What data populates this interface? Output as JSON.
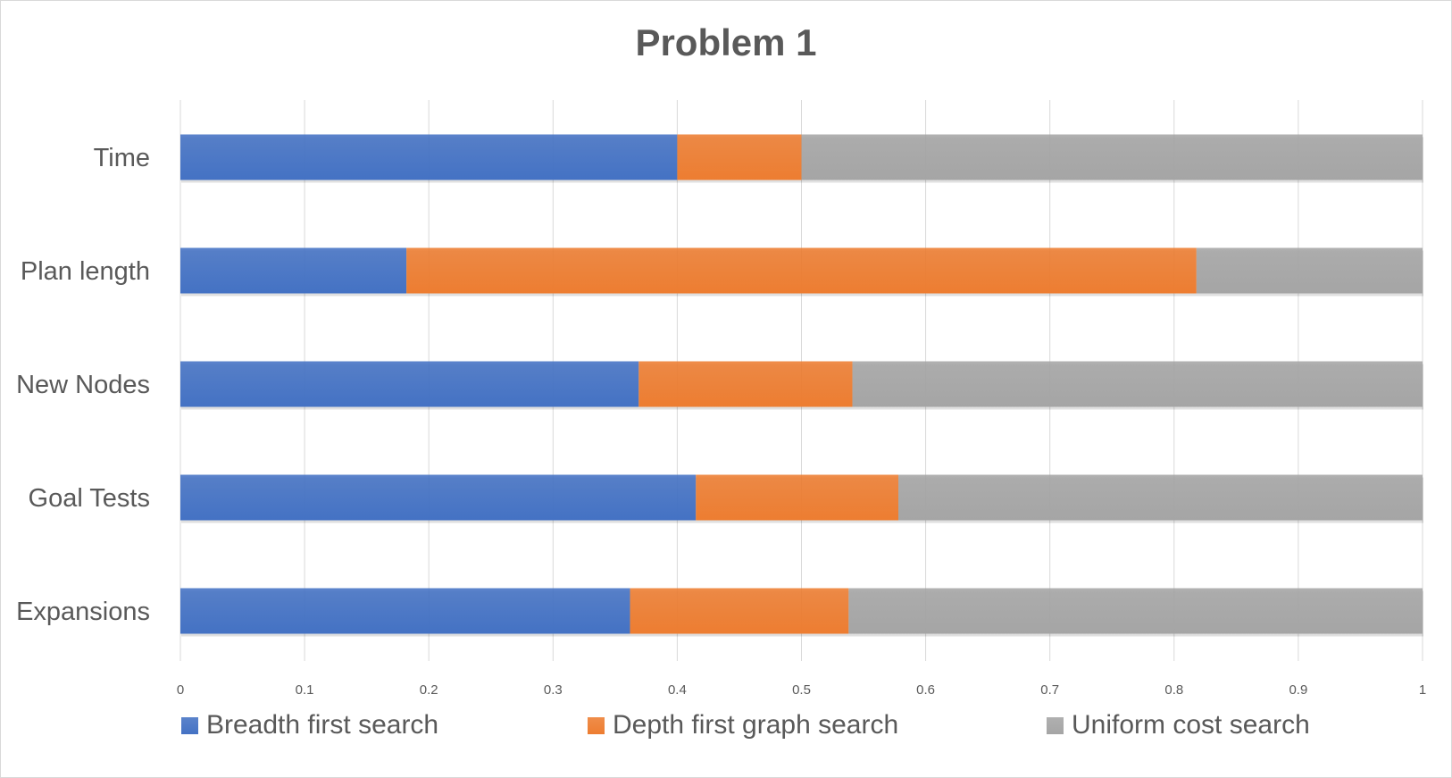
{
  "chart_data": {
    "type": "bar",
    "orientation": "horizontal",
    "stacked": true,
    "title": "Problem 1",
    "categories": [
      "Time",
      "Plan length",
      "New Nodes",
      "Goal Tests",
      "Expansions"
    ],
    "series": [
      {
        "name": "Breadth first search",
        "color": "#4472c4",
        "values": [
          0.4,
          0.182,
          0.369,
          0.415,
          0.362
        ]
      },
      {
        "name": "Depth first graph search",
        "color": "#ed7d31",
        "values": [
          0.1,
          0.636,
          0.172,
          0.163,
          0.176
        ]
      },
      {
        "name": "Uniform cost search",
        "color": "#a5a5a5",
        "values": [
          0.5,
          0.182,
          0.459,
          0.422,
          0.462
        ]
      }
    ],
    "x_ticks": [
      "0",
      "0.1",
      "0.2",
      "0.3",
      "0.4",
      "0.5",
      "0.6",
      "0.7",
      "0.8",
      "0.9",
      "1"
    ],
    "xlim": [
      0,
      1
    ],
    "grid": true,
    "legend_position": "bottom"
  }
}
